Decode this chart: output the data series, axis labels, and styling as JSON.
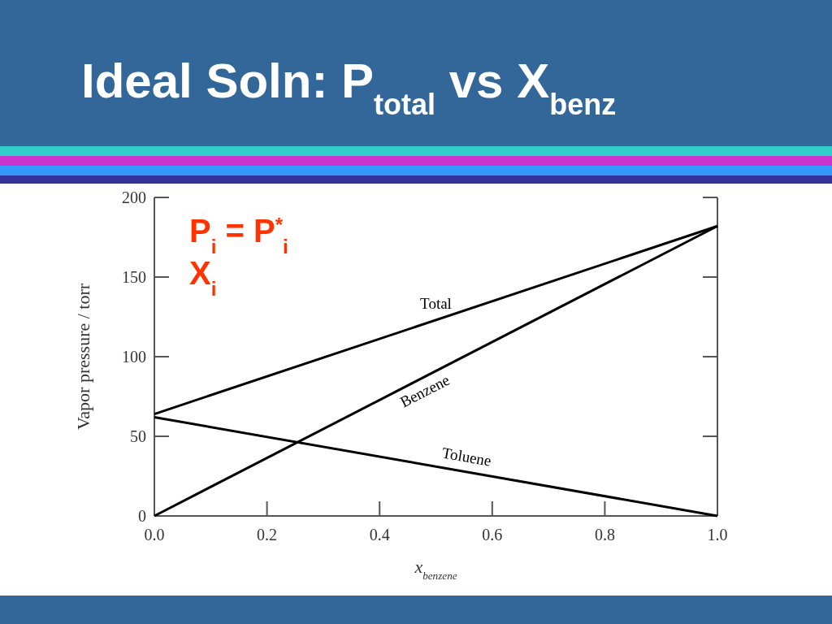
{
  "chart_data": {
    "type": "line",
    "title": "Ideal Soln:  P$_{total}$ vs X$_{benz}$",
    "xlabel": "x$_{benzene}$",
    "ylabel": "Vapor pressure / torr",
    "annotations": [
      "P$_{i}$ = P$^{*}$$_{i}$ X$_{i}$"
    ],
    "x": [
      0,
      1
    ],
    "series": [
      {
        "name": "Total",
        "color": "#000000",
        "values": [
          64,
          182
        ]
      },
      {
        "name": "Benzene",
        "color": "#000000",
        "values": [
          0,
          182
        ]
      },
      {
        "name": "Toluene",
        "color": "#000000",
        "values": [
          62,
          0
        ]
      }
    ],
    "xlim": [
      0,
      1
    ],
    "ylim": [
      0,
      200
    ],
    "xticks": [
      {
        "value": 0,
        "label": "0.0"
      },
      0.2,
      0.4,
      0.6,
      0.8,
      {
        "value": 1,
        "label": "1.0"
      }
    ],
    "yticks": [
      0,
      50,
      100,
      150,
      200
    ],
    "grid": false,
    "marker": "none",
    "line_style": "solid"
  }
}
